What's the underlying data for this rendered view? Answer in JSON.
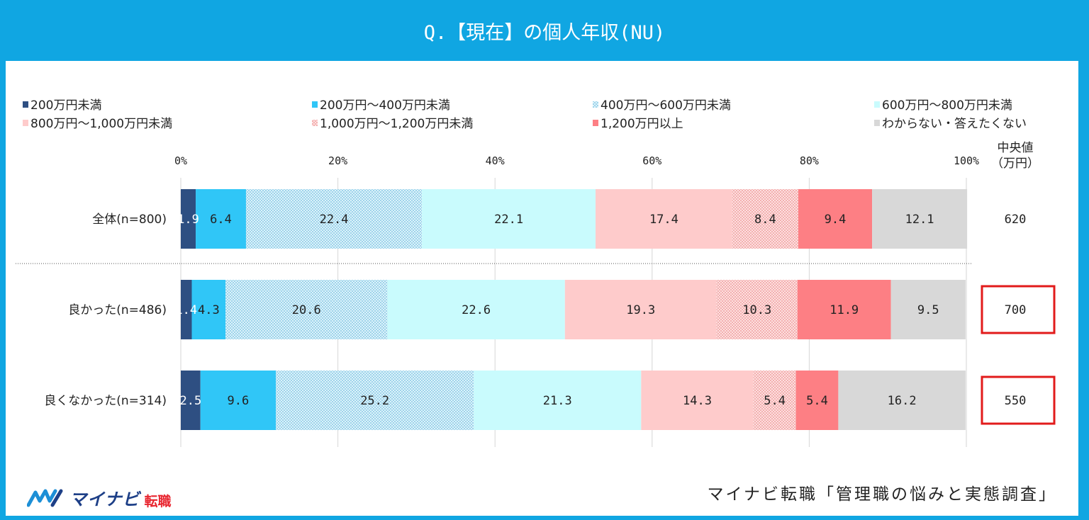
{
  "header": {
    "title": "Q.【現在】の個人年収(NU)"
  },
  "brand": {
    "name": "マイナビ",
    "sub": "転職"
  },
  "footer": {
    "source": "マイナビ転職「管理職の悩みと実態調査」"
  },
  "chart_data": {
    "type": "bar",
    "orientation": "horizontal",
    "stacked": "percent",
    "xlim": [
      0,
      100
    ],
    "x_ticks": [
      "0%",
      "20%",
      "40%",
      "60%",
      "80%",
      "100%"
    ],
    "grid": true,
    "legend_position": "top",
    "categories": [
      "全体(n=800)",
      "良かった(n=486)",
      "良くなかった(n=314)"
    ],
    "series": [
      {
        "name": "200万円未満",
        "values": [
          1.9,
          1.4,
          2.5
        ],
        "color": "#2e4f82",
        "pattern": "solid",
        "label_color": "#ffffff"
      },
      {
        "name": "200万円～400万円未満",
        "values": [
          6.4,
          4.3,
          9.6
        ],
        "color": "#30c6f7",
        "pattern": "solid",
        "label_color": "#222222"
      },
      {
        "name": "400万円～600万円未満",
        "values": [
          22.4,
          20.6,
          25.2
        ],
        "color": "#c2e6f3",
        "pattern": "dots",
        "label_color": "#222222"
      },
      {
        "name": "600万円～800万円未満",
        "values": [
          22.1,
          22.6,
          21.3
        ],
        "color": "#c9fbfd",
        "pattern": "solid",
        "label_color": "#222222"
      },
      {
        "name": "800万円～1,000万円未満",
        "values": [
          17.4,
          19.3,
          14.3
        ],
        "color": "#fecbcb",
        "pattern": "solid",
        "label_color": "#222222"
      },
      {
        "name": "1,000万円～1,200万円未満",
        "values": [
          8.4,
          10.3,
          5.4
        ],
        "color": "#f7c3c3",
        "pattern": "dots",
        "label_color": "#222222"
      },
      {
        "name": "1,200万円以上",
        "values": [
          9.4,
          11.9,
          5.4
        ],
        "color": "#fd7f84",
        "pattern": "solid",
        "label_color": "#222222"
      },
      {
        "name": "わからない・答えたくない",
        "values": [
          12.1,
          9.5,
          16.2
        ],
        "color": "#d8d8d8",
        "pattern": "solid",
        "label_color": "#222222"
      }
    ],
    "median": {
      "header": [
        "中央値",
        "（万円）"
      ],
      "values": [
        "620",
        "700",
        "550"
      ],
      "highlighted": [
        false,
        true,
        true
      ],
      "highlight_color": "#e21b1b"
    }
  }
}
